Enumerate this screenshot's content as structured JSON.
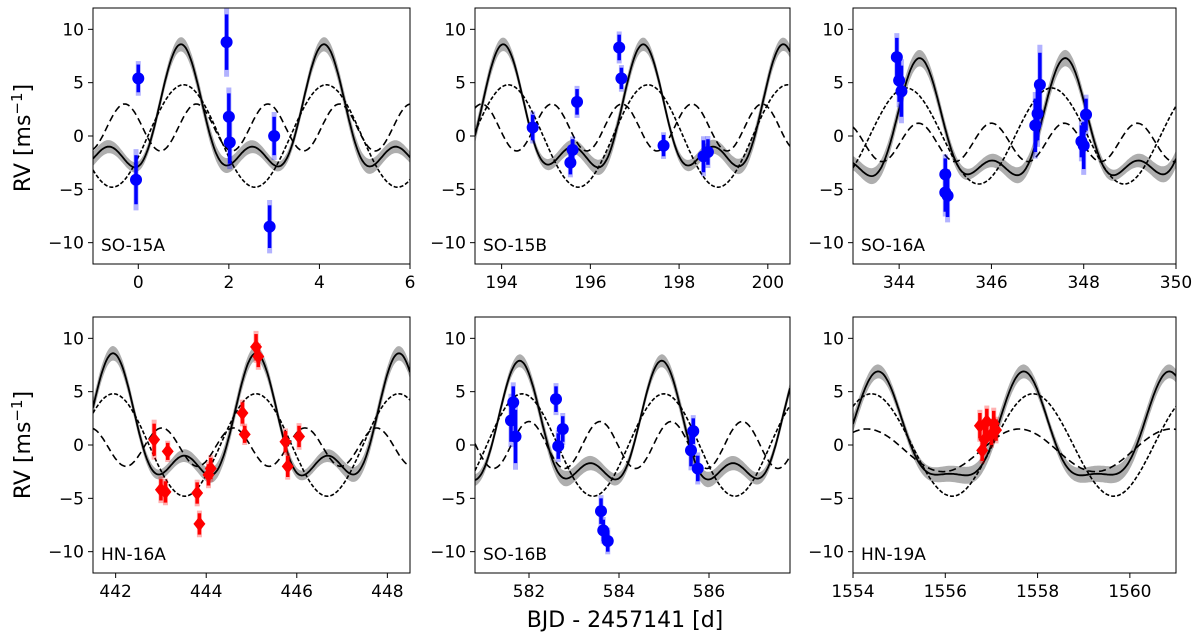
{
  "figure": {
    "ylabel": "RV [ms",
    "ylabel_exp": "−1",
    "ylabel_close": "]",
    "xlabel": "BJD - 2457141 [d]"
  },
  "style": {
    "blue": "#0000ff",
    "red": "#ff0000",
    "model": "#000000",
    "band": "#a0a0a0"
  },
  "chart_data": [
    {
      "type": "line",
      "label": "SO-15A",
      "xlim": [
        -1,
        6
      ],
      "ylim": [
        -12,
        12
      ],
      "xticks": [
        0,
        2,
        4,
        6
      ],
      "yticks": [
        -10,
        -5,
        0,
        5,
        10
      ],
      "marker": "circle",
      "points": [
        {
          "x": 0.0,
          "y": 5.4,
          "err": 1.3
        },
        {
          "x": -0.05,
          "y": -4.1,
          "err": 2.3
        },
        {
          "x": 1.95,
          "y": 8.8,
          "err": 2.6
        },
        {
          "x": 2.0,
          "y": 1.8,
          "err": 2.2
        },
        {
          "x": 2.02,
          "y": -0.6,
          "err": 2.0
        },
        {
          "x": 3.0,
          "y": 0.0,
          "err": 1.8
        },
        {
          "x": 2.9,
          "y": -8.5,
          "err": 2.0
        }
      ],
      "model": {
        "offset": 1.0,
        "t0": 4.1,
        "a1": 4.8,
        "p1": 3.15,
        "a2": 2.8,
        "p2": 1.58,
        "band": 0.45
      },
      "dashed": {
        "amp": 2.2,
        "period": 1.58,
        "t0": 1.28,
        "offset": 0.8
      },
      "dotted": {
        "amp": 4.8,
        "period": 3.15,
        "t0": 1.0,
        "offset": 0.0
      }
    },
    {
      "type": "line",
      "label": "SO-15B",
      "xlim": [
        193.4,
        200.5
      ],
      "ylim": [
        -12,
        12
      ],
      "xticks": [
        194,
        196,
        198,
        200
      ],
      "yticks": [
        -10,
        -5,
        0,
        5,
        10
      ],
      "marker": "circle",
      "points": [
        {
          "x": 194.7,
          "y": 0.8,
          "err": 1.2
        },
        {
          "x": 195.55,
          "y": -2.5,
          "err": 1.1
        },
        {
          "x": 195.6,
          "y": -1.3,
          "err": 1.0
        },
        {
          "x": 195.7,
          "y": 3.2,
          "err": 1.2
        },
        {
          "x": 196.65,
          "y": 8.3,
          "err": 1.2
        },
        {
          "x": 196.7,
          "y": 5.4,
          "err": 1.0
        },
        {
          "x": 197.65,
          "y": -0.9,
          "err": 1.0
        },
        {
          "x": 198.55,
          "y": -1.9,
          "err": 1.5
        },
        {
          "x": 198.65,
          "y": -1.5,
          "err": 1.2
        }
      ],
      "model": {
        "offset": 1.0,
        "t0": 200.35,
        "a1": 4.8,
        "p1": 3.15,
        "a2": 2.8,
        "p2": 1.58,
        "band": 0.45
      },
      "dashed": {
        "amp": 2.2,
        "period": 1.58,
        "t0": 193.55,
        "offset": 0.8
      },
      "dotted": {
        "amp": 4.8,
        "period": 3.15,
        "t0": 200.45,
        "offset": 0.0
      }
    },
    {
      "type": "line",
      "label": "SO-16A",
      "xlim": [
        343.0,
        350.0
      ],
      "ylim": [
        -12,
        12
      ],
      "xticks": [
        344,
        346,
        348,
        350
      ],
      "yticks": [
        -10,
        -5,
        0,
        5,
        10
      ],
      "marker": "circle",
      "points": [
        {
          "x": 343.95,
          "y": 7.4,
          "err": 1.8
        },
        {
          "x": 344.0,
          "y": 5.2,
          "err": 2.0
        },
        {
          "x": 344.05,
          "y": 4.2,
          "err": 2.4
        },
        {
          "x": 345.0,
          "y": -3.6,
          "err": 1.5
        },
        {
          "x": 345.0,
          "y": -5.3,
          "err": 1.8
        },
        {
          "x": 345.05,
          "y": -5.6,
          "err": 2.0
        },
        {
          "x": 346.95,
          "y": 1.0,
          "err": 2.5
        },
        {
          "x": 347.0,
          "y": 2.1,
          "err": 2.5
        },
        {
          "x": 347.05,
          "y": 4.8,
          "err": 3.0
        },
        {
          "x": 347.95,
          "y": -0.5,
          "err": 1.5
        },
        {
          "x": 348.0,
          "y": -0.9,
          "err": 2.2
        },
        {
          "x": 348.05,
          "y": 2.0,
          "err": 1.5
        }
      ],
      "model": {
        "offset": 0.0,
        "t0": 347.6,
        "a1": 4.8,
        "p1": 3.15,
        "a2": 2.5,
        "p2": 1.58,
        "band": 0.5
      },
      "dashed": {
        "amp": 1.8,
        "period": 1.58,
        "t0": 346.0,
        "offset": -0.6
      },
      "dotted": {
        "amp": 4.5,
        "period": 3.15,
        "t0": 347.3,
        "offset": 0.0
      }
    },
    {
      "type": "line",
      "label": "HN-16A",
      "xlim": [
        441.5,
        448.5
      ],
      "ylim": [
        -12,
        12
      ],
      "xticks": [
        442,
        444,
        446,
        448
      ],
      "yticks": [
        -10,
        -5,
        0,
        5,
        10
      ],
      "marker": "diamond",
      "points": [
        {
          "x": 442.85,
          "y": 0.5,
          "err": 1.5
        },
        {
          "x": 443.0,
          "y": -4.2,
          "err": 1.0
        },
        {
          "x": 443.1,
          "y": -4.4,
          "err": 1.0
        },
        {
          "x": 443.15,
          "y": -0.6,
          "err": 0.8
        },
        {
          "x": 443.8,
          "y": -4.5,
          "err": 1.0
        },
        {
          "x": 443.85,
          "y": -7.4,
          "err": 1.0
        },
        {
          "x": 444.05,
          "y": -2.8,
          "err": 1.0
        },
        {
          "x": 444.1,
          "y": -2.2,
          "err": 1.0
        },
        {
          "x": 444.8,
          "y": 3.0,
          "err": 1.0
        },
        {
          "x": 444.85,
          "y": 1.0,
          "err": 0.8
        },
        {
          "x": 445.1,
          "y": 9.2,
          "err": 1.2
        },
        {
          "x": 445.15,
          "y": 8.3,
          "err": 1.0
        },
        {
          "x": 445.75,
          "y": 0.3,
          "err": 1.0
        },
        {
          "x": 445.8,
          "y": -2.0,
          "err": 1.0
        },
        {
          "x": 446.05,
          "y": 0.8,
          "err": 1.0
        }
      ],
      "model": {
        "offset": 1.0,
        "t0": 445.1,
        "a1": 4.8,
        "p1": 3.15,
        "a2": 2.8,
        "p2": 1.58,
        "band": 0.45
      },
      "dashed": {
        "amp": 1.8,
        "period": 1.58,
        "t0": 444.6,
        "offset": -0.2
      },
      "dotted": {
        "amp": 4.8,
        "period": 3.15,
        "t0": 445.1,
        "offset": 0.0
      }
    },
    {
      "type": "line",
      "label": "SO-16B",
      "xlim": [
        580.8,
        587.8
      ],
      "ylim": [
        -12,
        12
      ],
      "xticks": [
        582,
        584,
        586
      ],
      "yticks": [
        -10,
        -5,
        0,
        5,
        10
      ],
      "marker": "circle",
      "points": [
        {
          "x": 581.6,
          "y": 2.3,
          "err": 2.0
        },
        {
          "x": 581.65,
          "y": 4.0,
          "err": 1.5
        },
        {
          "x": 581.7,
          "y": 0.8,
          "err": 2.5
        },
        {
          "x": 582.6,
          "y": 4.3,
          "err": 1.2
        },
        {
          "x": 582.65,
          "y": -0.1,
          "err": 1.2
        },
        {
          "x": 582.75,
          "y": 1.5,
          "err": 1.2
        },
        {
          "x": 583.6,
          "y": -6.2,
          "err": 1.2
        },
        {
          "x": 583.65,
          "y": -8.0,
          "err": 1.0
        },
        {
          "x": 583.75,
          "y": -9.0,
          "err": 1.0
        },
        {
          "x": 585.6,
          "y": -0.5,
          "err": 1.5
        },
        {
          "x": 585.65,
          "y": 1.3,
          "err": 1.2
        },
        {
          "x": 585.75,
          "y": -2.2,
          "err": 1.2
        }
      ],
      "model": {
        "offset": 0.5,
        "t0": 584.95,
        "a1": 4.8,
        "p1": 3.15,
        "a2": 2.6,
        "p2": 1.58,
        "band": 0.45
      },
      "dashed": {
        "amp": 2.2,
        "period": 1.58,
        "t0": 582.0,
        "offset": 0.0
      },
      "dotted": {
        "amp": 4.8,
        "period": 3.15,
        "t0": 585.0,
        "offset": 0.0
      }
    },
    {
      "type": "line",
      "label": "HN-19A",
      "xlim": [
        1554.0,
        1561.0
      ],
      "ylim": [
        -12,
        12
      ],
      "xticks": [
        1554,
        1556,
        1558,
        1560
      ],
      "yticks": [
        -10,
        -5,
        0,
        5,
        10
      ],
      "marker": "diamond",
      "points": [
        {
          "x": 1556.75,
          "y": 1.8,
          "err": 1.2
        },
        {
          "x": 1556.8,
          "y": -0.5,
          "err": 1.0
        },
        {
          "x": 1556.85,
          "y": 0.5,
          "err": 1.2
        },
        {
          "x": 1556.9,
          "y": 2.2,
          "err": 1.2
        },
        {
          "x": 1557.0,
          "y": 1.0,
          "err": 1.0
        },
        {
          "x": 1557.05,
          "y": 2.0,
          "err": 1.2
        },
        {
          "x": 1557.1,
          "y": 1.4,
          "err": 1.0
        }
      ],
      "model": {
        "offset": 0.6,
        "t0": 1557.7,
        "a1": 4.8,
        "p1": 3.15,
        "a2": 1.5,
        "p2": 1.58,
        "band": 0.5
      },
      "dashed": {
        "amp": 2.0,
        "period": 3.3,
        "t0": 1554.3,
        "offset": -0.5
      },
      "dotted": {
        "amp": 4.8,
        "period": 3.5,
        "t0": 1557.9,
        "offset": 0.0
      }
    }
  ]
}
